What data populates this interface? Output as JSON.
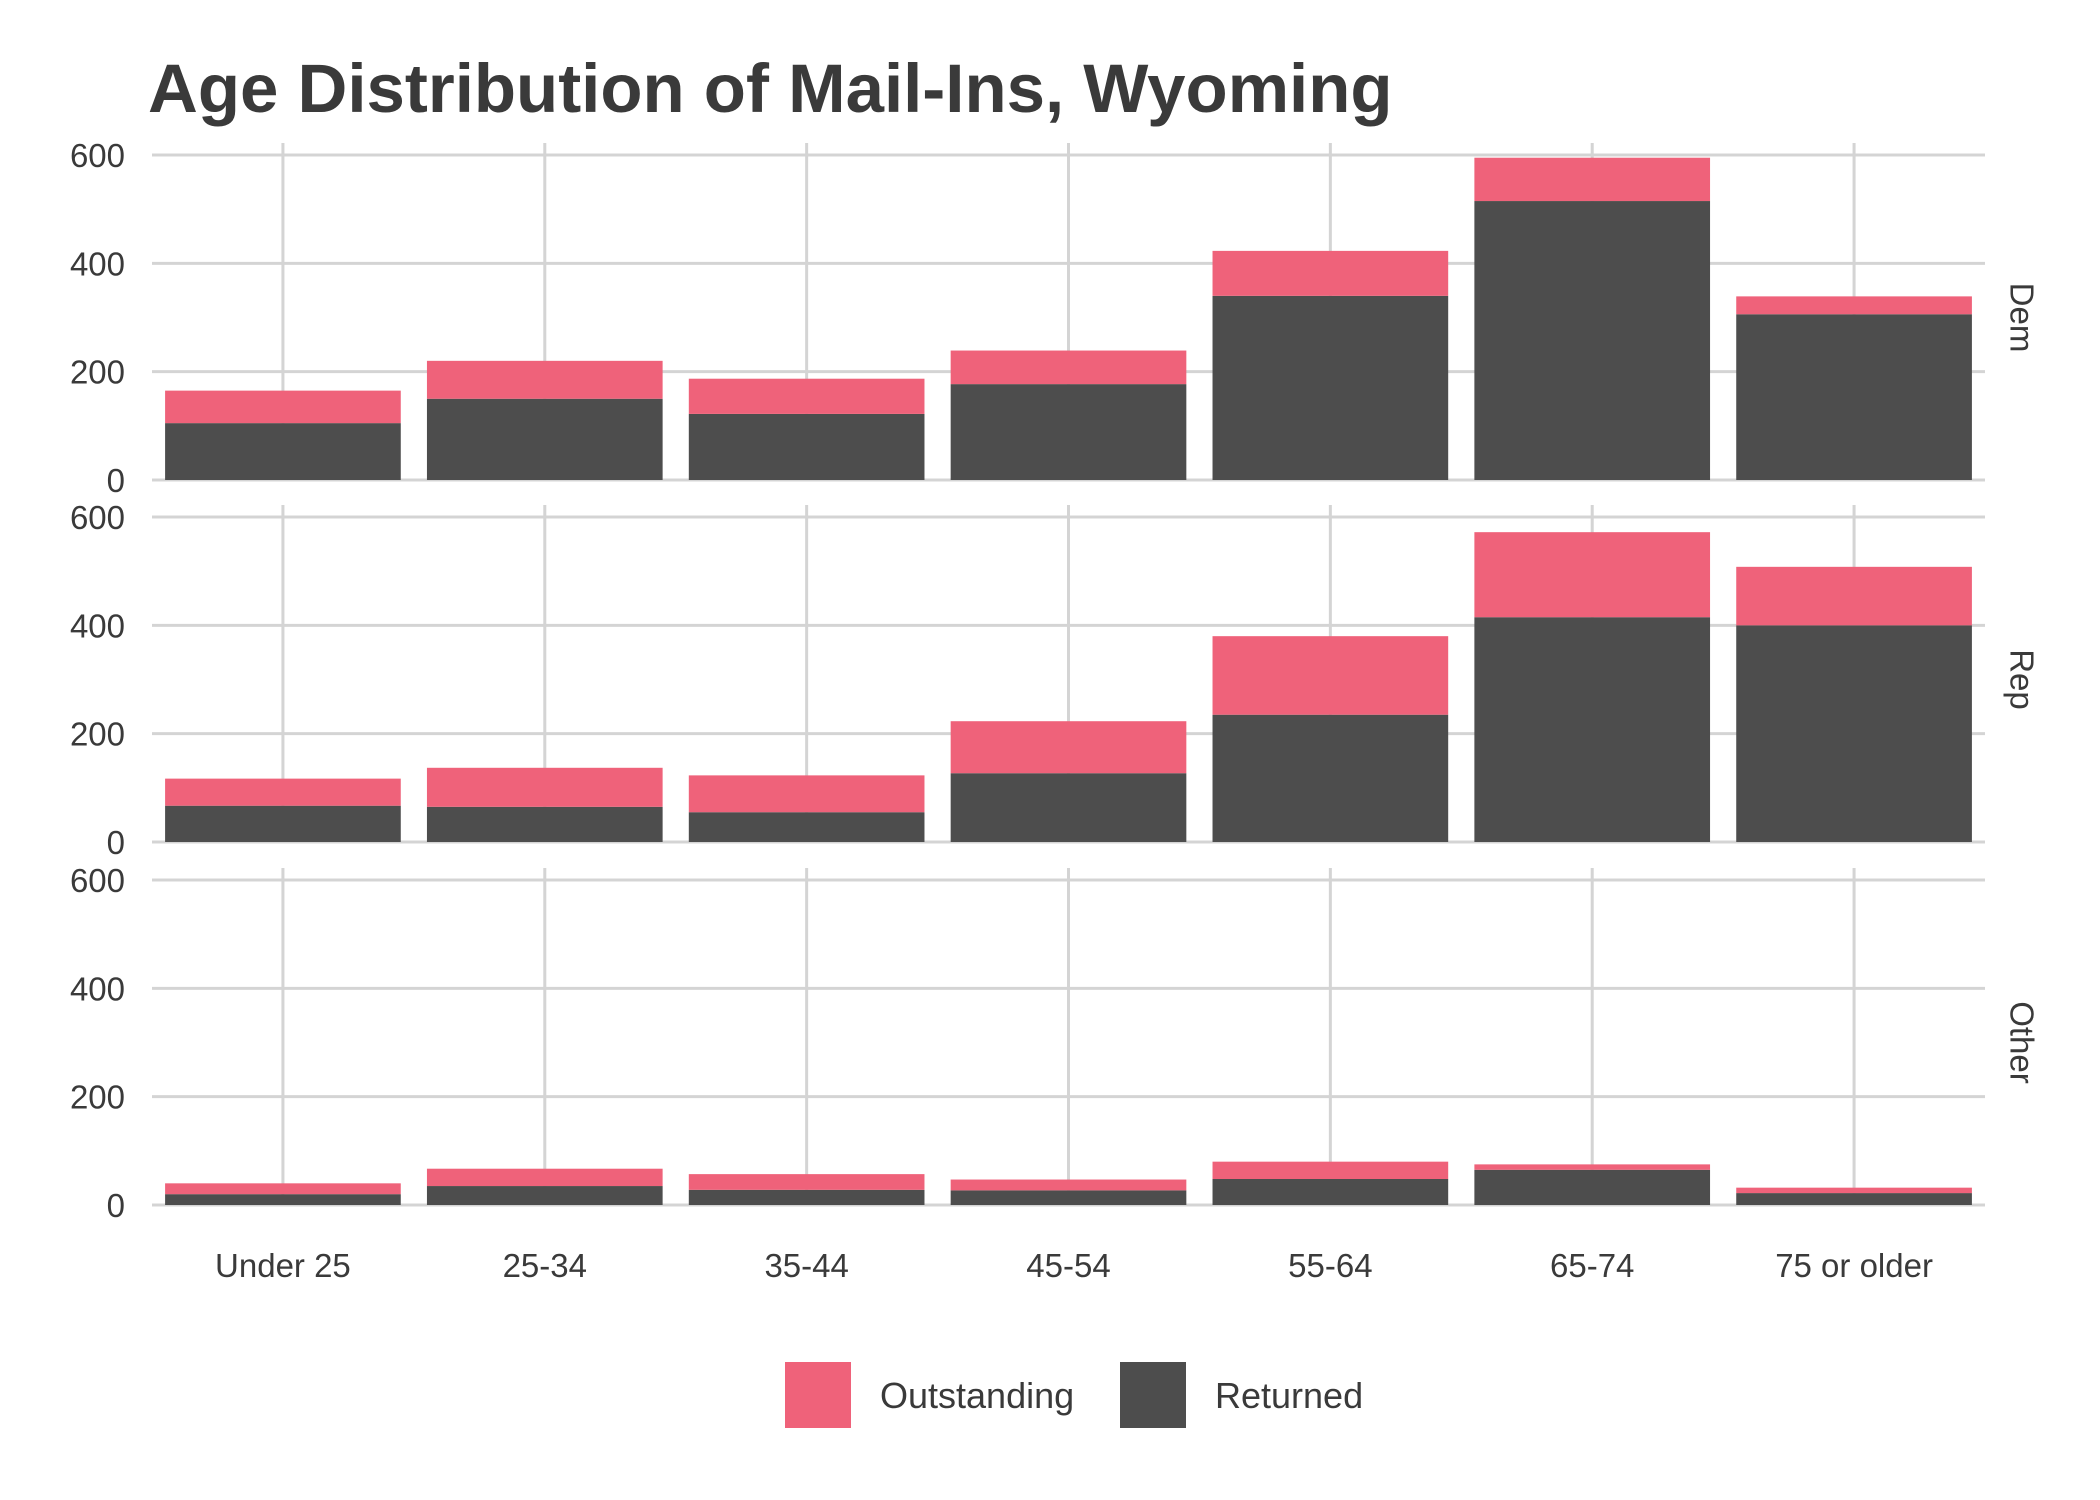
{
  "chart_data": {
    "type": "bar",
    "stacked": true,
    "title": "Age Distribution of Mail-Ins, Wyoming",
    "xlabel": "",
    "ylabel": "",
    "categories": [
      "Under 25",
      "25-34",
      "35-44",
      "45-54",
      "55-64",
      "65-74",
      "75 or older"
    ],
    "ylim": [
      0,
      600
    ],
    "yticks": [
      0,
      200,
      400,
      600
    ],
    "grid": true,
    "legend_position": "bottom",
    "colors": {
      "Returned": "#4d4d4d",
      "Outstanding": "#ef627a"
    },
    "legend": [
      "Outstanding",
      "Returned"
    ],
    "panels": [
      {
        "label": "Dem",
        "series": [
          {
            "name": "Returned",
            "values": [
              105,
              150,
              122,
              177,
              340,
              515,
              306
            ]
          },
          {
            "name": "Outstanding",
            "values": [
              60,
              70,
              65,
              62,
              83,
              80,
              33
            ]
          }
        ]
      },
      {
        "label": "Rep",
        "series": [
          {
            "name": "Returned",
            "values": [
              67,
              65,
              55,
              127,
              235,
              415,
              400
            ]
          },
          {
            "name": "Outstanding",
            "values": [
              50,
              72,
              68,
              96,
              145,
              157,
              108
            ]
          }
        ]
      },
      {
        "label": "Other",
        "series": [
          {
            "name": "Returned",
            "values": [
              20,
              35,
              28,
              27,
              48,
              65,
              22
            ]
          },
          {
            "name": "Outstanding",
            "values": [
              20,
              32,
              29,
              20,
              32,
              10,
              10
            ]
          }
        ]
      }
    ]
  }
}
